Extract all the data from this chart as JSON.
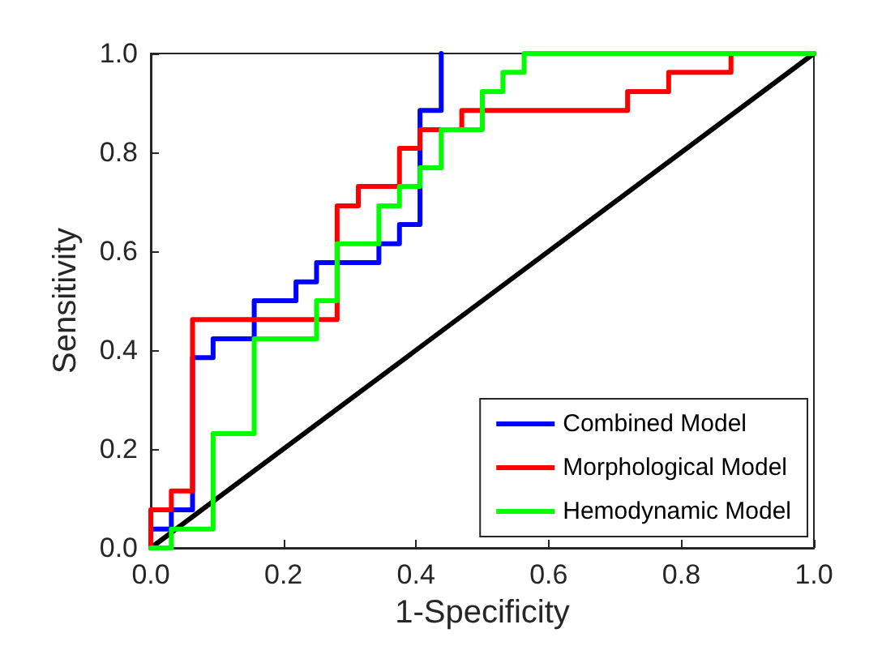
{
  "chart_data": {
    "type": "line",
    "xlabel": "1-Specificity",
    "ylabel": "Sensitivity",
    "xlim": [
      0,
      1
    ],
    "ylim": [
      0,
      1
    ],
    "xticks": [
      {
        "value": 0,
        "label": "0.0"
      },
      {
        "value": 0.2,
        "label": "0.2"
      },
      {
        "value": 0.4,
        "label": "0.4"
      },
      {
        "value": 0.6,
        "label": "0.6"
      },
      {
        "value": 0.8,
        "label": "0.8"
      },
      {
        "value": 1,
        "label": "1.0"
      }
    ],
    "yticks": [
      {
        "value": 0,
        "label": "0.0"
      },
      {
        "value": 0.2,
        "label": "0.2"
      },
      {
        "value": 0.4,
        "label": "0.4"
      },
      {
        "value": 0.6,
        "label": "0.6"
      },
      {
        "value": 0.8,
        "label": "0.8"
      },
      {
        "value": 1,
        "label": "1.0"
      }
    ],
    "grid": false,
    "legend": "bottom right",
    "marker": "none",
    "line_style": "solid",
    "series": [
      {
        "name": "Combined Model",
        "color": "#0000ff",
        "x": [
          0,
          0,
          0.031,
          0.031,
          0.063,
          0.063,
          0.094,
          0.094,
          0.156,
          0.156,
          0.219,
          0.219,
          0.25,
          0.25,
          0.344,
          0.344,
          0.375,
          0.375,
          0.406,
          0.406,
          0.438,
          0.438
        ],
        "values": [
          0,
          0.038,
          0.038,
          0.077,
          0.077,
          0.385,
          0.385,
          0.423,
          0.423,
          0.5,
          0.5,
          0.538,
          0.538,
          0.577,
          0.577,
          0.615,
          0.615,
          0.654,
          0.654,
          0.885,
          0.885,
          1
        ]
      },
      {
        "name": "Morphological Model",
        "color": "#ff0000",
        "x": [
          0,
          0,
          0.031,
          0.031,
          0.063,
          0.063,
          0.281,
          0.281,
          0.313,
          0.313,
          0.375,
          0.375,
          0.406,
          0.406,
          0.469,
          0.469,
          0.719,
          0.719,
          0.781,
          0.781,
          0.875,
          0.875
        ],
        "values": [
          0,
          0.077,
          0.077,
          0.115,
          0.115,
          0.462,
          0.462,
          0.692,
          0.692,
          0.731,
          0.731,
          0.808,
          0.808,
          0.846,
          0.846,
          0.885,
          0.885,
          0.923,
          0.923,
          0.962,
          0.962,
          1
        ]
      },
      {
        "name": "Hemodynamic Model",
        "color": "#00ff00",
        "x": [
          0,
          0.031,
          0.031,
          0.094,
          0.094,
          0.156,
          0.156,
          0.25,
          0.25,
          0.281,
          0.281,
          0.344,
          0.344,
          0.375,
          0.375,
          0.406,
          0.406,
          0.438,
          0.438,
          0.5,
          0.5,
          0.531,
          0.531,
          0.563,
          0.563,
          1
        ],
        "values": [
          0,
          0,
          0.038,
          0.038,
          0.231,
          0.231,
          0.423,
          0.423,
          0.5,
          0.5,
          0.615,
          0.615,
          0.692,
          0.692,
          0.731,
          0.731,
          0.769,
          0.769,
          0.846,
          0.846,
          0.923,
          0.923,
          0.962,
          0.962,
          1,
          1
        ]
      },
      {
        "color": "#000000",
        "x": [
          0,
          1
        ],
        "values": [
          0,
          1
        ]
      }
    ]
  }
}
